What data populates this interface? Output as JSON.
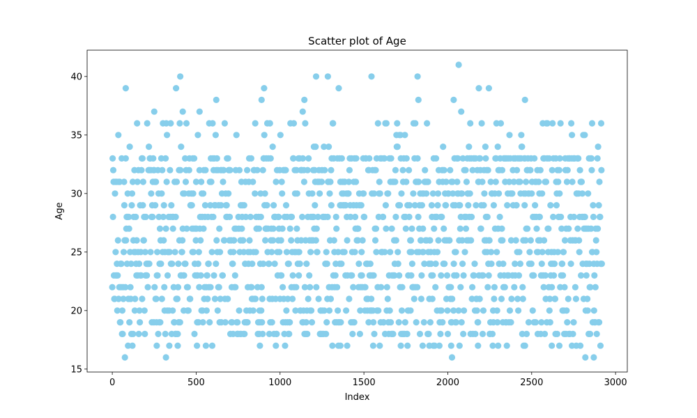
{
  "chart_data": {
    "type": "scatter",
    "title": "Scatter plot of Age",
    "xlabel": "Index",
    "ylabel": "Age",
    "xlim": [
      -150,
      3070
    ],
    "ylim": [
      14.75,
      42.25
    ],
    "xticks": [
      0,
      500,
      1000,
      1500,
      2000,
      2500,
      3000
    ],
    "yticks": [
      15,
      20,
      25,
      30,
      35,
      40
    ],
    "grid": false,
    "legend": "none",
    "n_points": 2920,
    "age_range": [
      16,
      41
    ],
    "marker_color": "#87CEEB",
    "sampling": "dense age band 18–33 at most indices; sparse values 16–17 and 34–41",
    "series": [
      {
        "values_note": "selected outliers read from plot",
        "points": [
          [
            80,
            39
          ],
          [
            75,
            16
          ],
          [
            250,
            37
          ],
          [
            320,
            16
          ],
          [
            380,
            39
          ],
          [
            405,
            40
          ],
          [
            420,
            37
          ],
          [
            520,
            37
          ],
          [
            620,
            38
          ],
          [
            905,
            39
          ],
          [
            890,
            38
          ],
          [
            1135,
            37
          ],
          [
            1145,
            38
          ],
          [
            1215,
            40
          ],
          [
            1285,
            40
          ],
          [
            1350,
            39
          ],
          [
            1545,
            40
          ],
          [
            1820,
            40
          ],
          [
            1825,
            38
          ],
          [
            2025,
            16
          ],
          [
            2035,
            38
          ],
          [
            2065,
            41
          ],
          [
            2080,
            37
          ],
          [
            2185,
            39
          ],
          [
            2245,
            39
          ],
          [
            2460,
            38
          ],
          [
            2820,
            16
          ],
          [
            2870,
            16
          ],
          [
            2860,
            36
          ],
          [
            265,
            17
          ],
          [
            390,
            17
          ],
          [
            505,
            17
          ],
          [
            880,
            17
          ],
          [
            975,
            17
          ],
          [
            1030,
            17
          ],
          [
            1360,
            17
          ],
          [
            1400,
            17
          ],
          [
            1555,
            17
          ],
          [
            1720,
            17
          ],
          [
            1760,
            17
          ],
          [
            1850,
            17
          ],
          [
            1890,
            17
          ],
          [
            2020,
            17
          ],
          [
            2180,
            17
          ],
          [
            2300,
            17
          ],
          [
            2460,
            17
          ],
          [
            2620,
            17
          ],
          [
            2665,
            17
          ],
          [
            2740,
            17
          ]
        ]
      }
    ]
  }
}
